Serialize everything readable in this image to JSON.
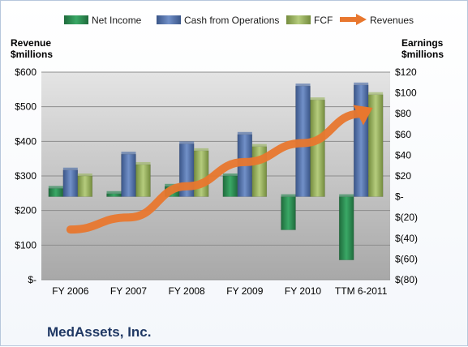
{
  "chart_data": {
    "type": "bar",
    "title": "MedAssets, Inc.",
    "categories": [
      "FY 2006",
      "FY 2007",
      "FY 2008",
      "FY 2009",
      "FY 2010",
      "TTM 6-2011"
    ],
    "series": [
      {
        "name": "Net Income",
        "axis": "right",
        "color": "#2e8b57",
        "values": [
          8,
          3,
          10,
          20,
          -32,
          -61
        ]
      },
      {
        "name": "Cash from Operations",
        "axis": "left",
        "color": "#4f6fa8",
        "values": [
          317,
          363,
          393,
          420,
          560,
          563
        ]
      },
      {
        "name": "FCF",
        "axis": "left",
        "color": "#9bb563",
        "values": [
          300,
          333,
          373,
          385,
          520,
          535
        ]
      },
      {
        "name": "Revenues",
        "axis": "left",
        "color": "#e8772e",
        "style": "arrow",
        "values": [
          145,
          180,
          270,
          340,
          395,
          480
        ]
      }
    ],
    "left_axis": {
      "label_line1": "Revenue",
      "label_line2": "$millions",
      "ylim": [
        0,
        600
      ],
      "ticks": [
        0,
        100,
        200,
        300,
        400,
        500,
        600
      ],
      "tick_labels": [
        "$-",
        "$100",
        "$200",
        "$300",
        "$400",
        "$500",
        "$600"
      ]
    },
    "right_axis": {
      "label_line1": "Earnings",
      "label_line2": "$millions",
      "ylim": [
        -80,
        120
      ],
      "ticks": [
        -80,
        -60,
        -40,
        -20,
        0,
        20,
        40,
        60,
        80,
        100,
        120
      ],
      "tick_labels": [
        "$(80)",
        "$(60)",
        "$(40)",
        "$(20)",
        "$-",
        "$20",
        "$40",
        "$60",
        "$80",
        "$100",
        "$120"
      ]
    },
    "grid": true,
    "legend_position": "top"
  }
}
